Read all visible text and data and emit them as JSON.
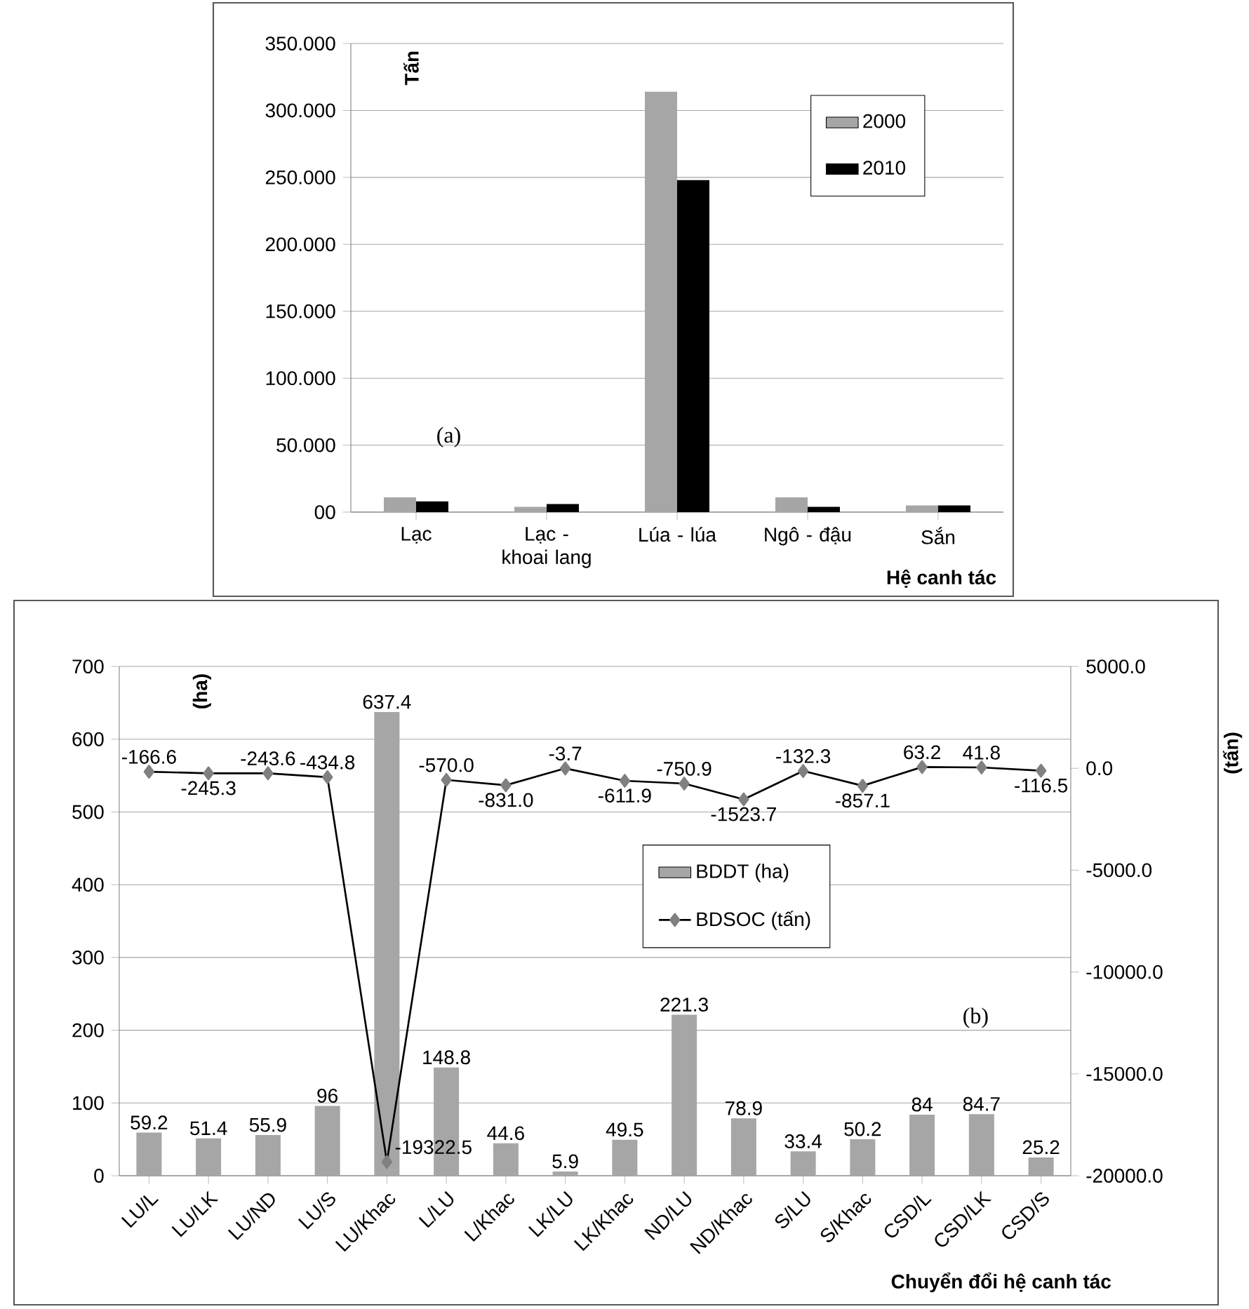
{
  "chart_data": [
    {
      "type": "bar",
      "xlabel": "Hệ canh tác",
      "ylabel": "Tấn",
      "categories": [
        "Lạc",
        "Lạc - khoai lang",
        "Lúa - lúa",
        "Ngô - đậu",
        "Sắn"
      ],
      "series": [
        {
          "name": "2000",
          "color": "#a6a6a6",
          "values": [
            11,
            4,
            314,
            11,
            5
          ]
        },
        {
          "name": "2010",
          "color": "#000000",
          "values": [
            8,
            6,
            248,
            4,
            5
          ]
        }
      ],
      "ylim": [
        0,
        350
      ],
      "yticks": [
        {
          "value": 0,
          "label": "00"
        },
        {
          "value": 50,
          "label": "50.000"
        },
        {
          "value": 100,
          "label": "100.000"
        },
        {
          "value": 150,
          "label": "150.000"
        },
        {
          "value": 200,
          "label": "200.000"
        },
        {
          "value": 250,
          "label": "250.000"
        },
        {
          "value": 300,
          "label": "300.000"
        },
        {
          "value": 350,
          "label": "350.000"
        }
      ],
      "grid": "y",
      "legend": "top right",
      "annotations": [
        "(a)"
      ]
    },
    {
      "type": "bar",
      "xlabel": "Chuyển đổi hệ canh tác",
      "ylabel": "(ha)",
      "y2label": "(tấn)",
      "categories": [
        "LU/L",
        "LU/LK",
        "LU/ND",
        "LU/S",
        "LU/Khac",
        "L/LU",
        "L/Khac",
        "LK/LU",
        "LK/Khac",
        "ND/LU",
        "ND/Khac",
        "S/LU",
        "S/Khac",
        "CSD/L",
        "CSD/LK",
        "CSD/S"
      ],
      "series": [
        {
          "name": "BDDT (ha)",
          "color": "#a6a6a6",
          "values": [
            59.2,
            51.4,
            55.9,
            96,
            637.4,
            148.8,
            44.6,
            5.9,
            49.5,
            221.3,
            78.9,
            33.4,
            50.2,
            84,
            84.7,
            25.2
          ],
          "value_labels": [
            "59.2",
            "51.4",
            "55.9",
            "96",
            "637.4",
            "148.8",
            "44.6",
            "5.9",
            "49.5",
            "221.3",
            "78.9",
            "33.4",
            "50.2",
            "84",
            "84.7",
            "25.2"
          ]
        },
        {
          "name": "BDSOC (tấn)",
          "type": "line",
          "axis": "y2",
          "color": "#000000",
          "marker": "diamond",
          "values": [
            -166.6,
            -245.3,
            -243.6,
            -434.8,
            -19322.5,
            -570.0,
            -831.0,
            -3.7,
            -611.9,
            -750.9,
            -1523.7,
            -132.3,
            -857.1,
            63.2,
            41.8,
            -116.5
          ],
          "value_labels": [
            "-166.6",
            "-245.3",
            "-243.6",
            "-434.8",
            "-19322.5",
            "-570.0",
            "-831.0",
            "-3.7",
            "-611.9",
            "-750.9",
            "-1523.7",
            "-132.3",
            "-857.1",
            "63.2",
            "41.8",
            "-116.5"
          ]
        }
      ],
      "ylim": [
        0,
        700
      ],
      "yticks": [
        0,
        100,
        200,
        300,
        400,
        500,
        600,
        700
      ],
      "y2lim": [
        -20000,
        5000
      ],
      "y2ticks": [
        {
          "value": -20000,
          "label": "-20000.0"
        },
        {
          "value": -15000,
          "label": "-15000.0"
        },
        {
          "value": -10000,
          "label": "-10000.0"
        },
        {
          "value": -5000,
          "label": "-5000.0"
        },
        {
          "value": 0,
          "label": "0.0"
        },
        {
          "value": 5000,
          "label": "5000.0"
        }
      ],
      "grid": "y",
      "legend": "center",
      "annotations": [
        "(b)"
      ]
    }
  ]
}
